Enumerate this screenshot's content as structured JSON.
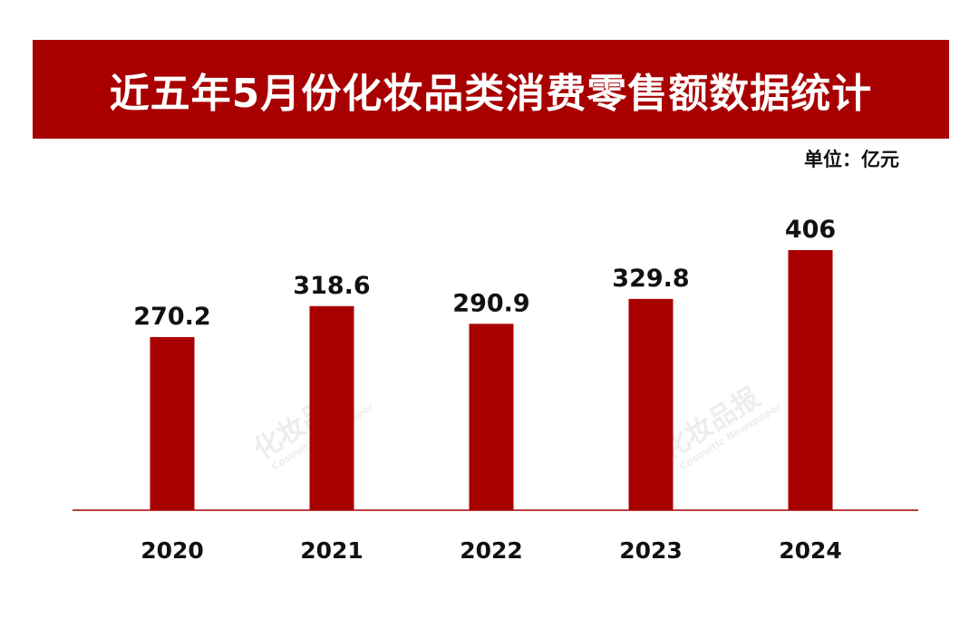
{
  "header": {
    "title": "近五年5月份化妆品类消费零售额数据统计",
    "unit": "单位：亿元"
  },
  "watermark": {
    "text": "化妆品报",
    "subtext": "Cosmetic Newspaper"
  },
  "colors": {
    "accent": "#a80000",
    "text": "#111111"
  },
  "chart_data": {
    "type": "bar",
    "categories": [
      "2020",
      "2021",
      "2022",
      "2023",
      "2024"
    ],
    "values": [
      270.2,
      318.6,
      290.9,
      329.8,
      406
    ],
    "value_labels": [
      "270.2",
      "318.6",
      "290.9",
      "329.8",
      "406"
    ],
    "title": "近五年5月份化妆品类消费零售额数据统计",
    "unit": "单位：亿元",
    "ylim": [
      0,
      440
    ],
    "grid": false,
    "legend": "none"
  }
}
